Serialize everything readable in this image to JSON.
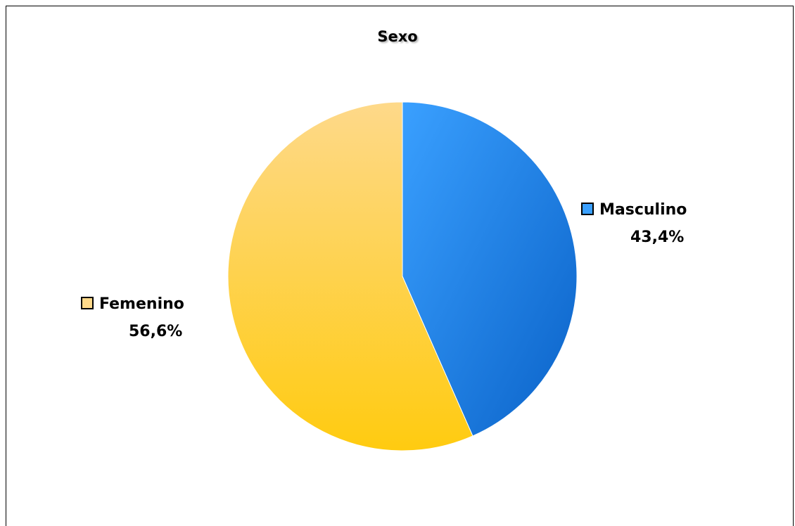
{
  "chart_data": {
    "type": "pie",
    "title": "Sexo",
    "slices": [
      {
        "label": "Masculino",
        "value": 43.4,
        "display": "43,4%",
        "color": "#1e7fe0"
      },
      {
        "label": "Femenino",
        "value": 56.6,
        "display": "56,6%",
        "color": "#fdd06a"
      }
    ],
    "legend": "labels beside slices"
  }
}
